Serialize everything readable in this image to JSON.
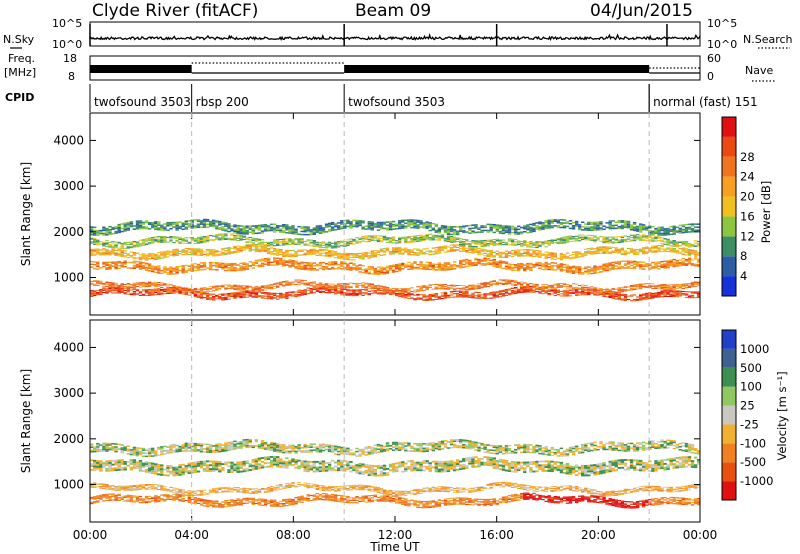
{
  "header": {
    "station": "Clyde River (fitACF)",
    "beam": "Beam 09",
    "date": "04/Jun/2015"
  },
  "side_labels": {
    "nsky": "N.Sky",
    "nsearch": "N.Search",
    "freq_line1": "Freq.",
    "freq_line2": "[MHz]",
    "nave": "Nave",
    "cpid": "CPID"
  },
  "noise_panel": {
    "left_ticks": [
      "10^5",
      "10^0"
    ],
    "right_ticks": [
      "10^5",
      "10^0"
    ]
  },
  "freq_panel": {
    "left_ticks": [
      "18",
      "8"
    ],
    "right_ticks": [
      "60",
      "0"
    ]
  },
  "cpid_segments": [
    {
      "label": "twofsound 3503",
      "start": 0.0,
      "end": 4.0
    },
    {
      "label": "rbsp 200",
      "start": 4.0,
      "end": 10.0
    },
    {
      "label": "twofsound 3503",
      "start": 10.0,
      "end": 22.0
    },
    {
      "label": "normal (fast) 151",
      "start": 22.0,
      "end": 24.0
    }
  ],
  "chart_data": [
    {
      "type": "heatmap",
      "name": "power",
      "ylabel": "Slant Range [km]",
      "ylim": [
        180,
        4600
      ],
      "y_ticks": [
        1000,
        2000,
        3000,
        4000
      ],
      "xlim": [
        0,
        24
      ],
      "x_ticks": [
        "00:00",
        "04:00",
        "08:00",
        "12:00",
        "16:00",
        "20:00",
        "00:00"
      ],
      "colorbar": {
        "label": "Power [dB]",
        "ticks": [
          "4",
          "8",
          "12",
          "16",
          "20",
          "24",
          "28"
        ],
        "colors": [
          "#1432d8",
          "#2c5ea3",
          "#3c8f62",
          "#8cc63f",
          "#f0c020",
          "#f5a020",
          "#f0741c",
          "#e84a10",
          "#e01010"
        ]
      },
      "bands": [
        {
          "center": 650,
          "width": 150,
          "level": 28
        },
        {
          "center": 800,
          "width": 120,
          "level": 24
        },
        {
          "center": 1250,
          "width": 180,
          "level": 22
        },
        {
          "center": 1550,
          "width": 160,
          "level": 18
        },
        {
          "center": 1800,
          "width": 150,
          "level": 12
        },
        {
          "center": 2100,
          "width": 200,
          "level": 8
        }
      ]
    },
    {
      "type": "heatmap",
      "name": "velocity",
      "ylabel": "Slant Range [km]",
      "ylim": [
        180,
        4600
      ],
      "y_ticks": [
        1000,
        2000,
        3000,
        4000
      ],
      "xlim": [
        0,
        24
      ],
      "x_ticks": [
        "00:00",
        "04:00",
        "08:00",
        "12:00",
        "16:00",
        "20:00",
        "00:00"
      ],
      "xlabel": "Time UT",
      "colorbar": {
        "label": "Velocity [m s⁻¹]",
        "ticks": [
          "1000",
          "500",
          "100",
          "25",
          "-25",
          "-100",
          "-500",
          "-1000"
        ],
        "colors": [
          "#2040c8",
          "#406090",
          "#3c8f50",
          "#90c860",
          "#c8c8c0",
          "#f0b030",
          "#f08020",
          "#e85010",
          "#e01010"
        ]
      },
      "bands": [
        {
          "center": 650,
          "width": 160,
          "level": -300
        },
        {
          "center": 900,
          "width": 120,
          "level": -150
        },
        {
          "center": 1400,
          "width": 250,
          "level": 0
        },
        {
          "center": 1800,
          "width": 200,
          "level": 0
        }
      ]
    }
  ]
}
